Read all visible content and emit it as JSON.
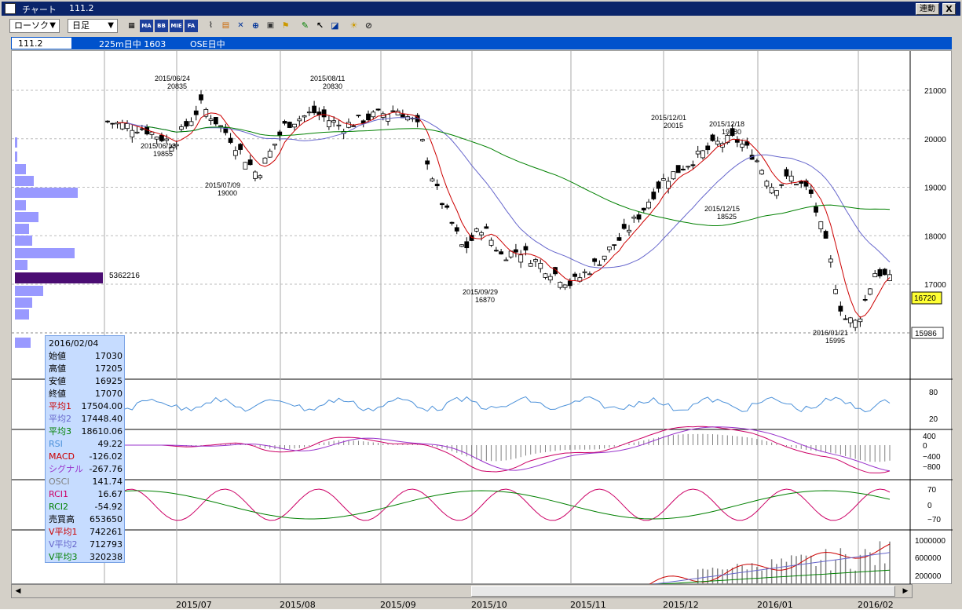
{
  "window": {
    "title": "チャート",
    "code_title": "111.2",
    "link_button": "連動",
    "close_button": "X"
  },
  "toolbar": {
    "chart_style": "ローソク",
    "period": "日足",
    "tools": [
      "MA",
      "BB",
      "MIE",
      "FA"
    ]
  },
  "infobar": {
    "code": "111.2",
    "name": "225m日中 1603",
    "market": "OSE日中"
  },
  "price_axis": [
    "21000",
    "20000",
    "19000",
    "18000",
    "17000"
  ],
  "current_price": "16720",
  "low_marker": "15986",
  "volume_profile_label": "5362216",
  "annotations": [
    {
      "date": "2015/06/24",
      "value": "20835"
    },
    {
      "date": "2015/06/18",
      "value": "19855"
    },
    {
      "date": "2015/07/09",
      "value": "19000"
    },
    {
      "date": "2015/08/11",
      "value": "20830"
    },
    {
      "date": "2015/09/29",
      "value": "16870"
    },
    {
      "date": "2015/12/01",
      "value": "20015"
    },
    {
      "date": "2015/12/18",
      "value": "19880"
    },
    {
      "date": "2015/12/15",
      "value": "18525"
    },
    {
      "date": "2016/01/21",
      "value": "15995"
    }
  ],
  "rsi_axis": [
    "80",
    "20"
  ],
  "macd_axis": [
    "400",
    "0",
    "−400",
    "−800"
  ],
  "rci_axis": [
    "70",
    "0",
    "−70"
  ],
  "volume_axis": [
    "1000000",
    "600000",
    "200000"
  ],
  "legend": {
    "date": "2016/02/04",
    "rows": [
      {
        "label": "始値",
        "value": "17030",
        "color": "#000000"
      },
      {
        "label": "高値",
        "value": "17205",
        "color": "#000000"
      },
      {
        "label": "安値",
        "value": "16925",
        "color": "#000000"
      },
      {
        "label": "終値",
        "value": "17070",
        "color": "#000000"
      },
      {
        "label": "平均1",
        "value": "17504.00",
        "color": "#cc0000"
      },
      {
        "label": "平均2",
        "value": "17448.40",
        "color": "#6666cc"
      },
      {
        "label": "平均3",
        "value": "18610.06",
        "color": "#008000"
      },
      {
        "label": "RSI",
        "value": "49.22",
        "color": "#4a90d9"
      },
      {
        "label": "MACD",
        "value": "-126.02",
        "color": "#cc0000"
      },
      {
        "label": "シグナル",
        "value": "-267.76",
        "color": "#9933cc"
      },
      {
        "label": "OSCI",
        "value": "141.74",
        "color": "#808080"
      },
      {
        "label": "RCI1",
        "value": "16.67",
        "color": "#cc0066"
      },
      {
        "label": "RCI2",
        "value": "-54.92",
        "color": "#008000"
      },
      {
        "label": "売買高",
        "value": "653650",
        "color": "#000000"
      },
      {
        "label": "V平均1",
        "value": "742261",
        "color": "#cc0000"
      },
      {
        "label": "V平均2",
        "value": "712793",
        "color": "#6666cc"
      },
      {
        "label": "V平均3",
        "value": "320238",
        "color": "#008000"
      }
    ]
  },
  "dates": [
    "2015/07",
    "2015/08",
    "2015/09",
    "2015/10",
    "2015/11",
    "2015/12",
    "2016/01",
    "2016/02"
  ]
}
